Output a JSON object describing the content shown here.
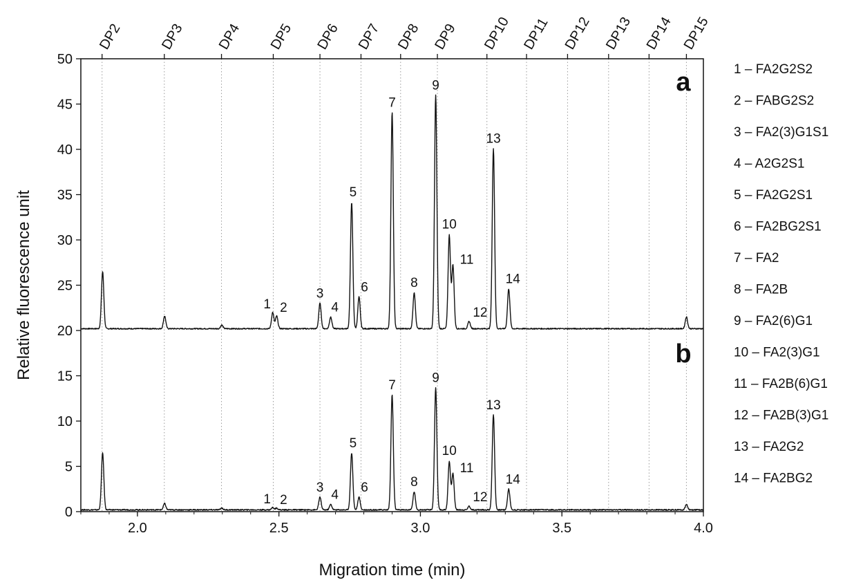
{
  "chart_data": {
    "type": "line",
    "xlabel": "Migration time (min)",
    "ylabel": "Relative fluorescence unit",
    "xlim": [
      1.8,
      4.0
    ],
    "ylim": [
      0,
      50
    ],
    "x_ticks": [
      "2.0",
      "2.5",
      "3.0",
      "3.5",
      "4.0"
    ],
    "y_ticks": [
      "0",
      "5",
      "10",
      "15",
      "20",
      "25",
      "30",
      "35",
      "40",
      "45",
      "50"
    ],
    "grid": "vertical dotted lines at DP ladder positions",
    "panel_labels": [
      "a",
      "b"
    ],
    "dp_ladder": [
      {
        "label": "DP2",
        "x": 1.875
      },
      {
        "label": "DP3",
        "x": 2.095
      },
      {
        "label": "DP4",
        "x": 2.297
      },
      {
        "label": "DP5",
        "x": 2.48
      },
      {
        "label": "DP6",
        "x": 2.645
      },
      {
        "label": "DP7",
        "x": 2.79
      },
      {
        "label": "DP8",
        "x": 2.93
      },
      {
        "label": "DP9",
        "x": 3.06
      },
      {
        "label": "DP10",
        "x": 3.235
      },
      {
        "label": "DP11",
        "x": 3.375
      },
      {
        "label": "DP12",
        "x": 3.52
      },
      {
        "label": "DP13",
        "x": 3.665
      },
      {
        "label": "DP14",
        "x": 3.808
      },
      {
        "label": "DP15",
        "x": 3.94
      }
    ],
    "series": [
      {
        "baseline": 20.2,
        "peaks": [
          {
            "label": "",
            "x": 1.877,
            "y": 26.5
          },
          {
            "label": "",
            "x": 2.096,
            "y": 21.6
          },
          {
            "label": "",
            "x": 2.298,
            "y": 20.6
          },
          {
            "label": "1",
            "x": 2.478,
            "y": 22.0
          },
          {
            "label": "2",
            "x": 2.492,
            "y": 21.6
          },
          {
            "label": "3",
            "x": 2.645,
            "y": 23.0
          },
          {
            "label": "4",
            "x": 2.683,
            "y": 21.5
          },
          {
            "label": "5",
            "x": 2.757,
            "y": 34.2
          },
          {
            "label": "6",
            "x": 2.783,
            "y": 23.7
          },
          {
            "label": "7",
            "x": 2.9,
            "y": 44.1
          },
          {
            "label": "8",
            "x": 2.978,
            "y": 24.2
          },
          {
            "label": "9",
            "x": 3.054,
            "y": 46.0
          },
          {
            "label": "10",
            "x": 3.102,
            "y": 30.5
          },
          {
            "label": "11",
            "x": 3.115,
            "y": 27.2
          },
          {
            "label": "12",
            "x": 3.172,
            "y": 21.0
          },
          {
            "label": "13",
            "x": 3.258,
            "y": 40.1
          },
          {
            "label": "14",
            "x": 3.312,
            "y": 24.6
          },
          {
            "label": "",
            "x": 3.94,
            "y": 21.5
          }
        ]
      },
      {
        "baseline": 0.2,
        "peaks": [
          {
            "label": "",
            "x": 1.877,
            "y": 6.5
          },
          {
            "label": "",
            "x": 2.096,
            "y": 0.9
          },
          {
            "label": "",
            "x": 2.298,
            "y": 0.4
          },
          {
            "label": "1",
            "x": 2.478,
            "y": 0.45
          },
          {
            "label": "2",
            "x": 2.492,
            "y": 0.4
          },
          {
            "label": "3",
            "x": 2.645,
            "y": 1.6
          },
          {
            "label": "4",
            "x": 2.683,
            "y": 0.8
          },
          {
            "label": "5",
            "x": 2.757,
            "y": 6.5
          },
          {
            "label": "6",
            "x": 2.783,
            "y": 1.6
          },
          {
            "label": "7",
            "x": 2.9,
            "y": 12.9
          },
          {
            "label": "8",
            "x": 2.978,
            "y": 2.2
          },
          {
            "label": "9",
            "x": 3.054,
            "y": 13.7
          },
          {
            "label": "10",
            "x": 3.102,
            "y": 5.5
          },
          {
            "label": "11",
            "x": 3.115,
            "y": 4.2
          },
          {
            "label": "12",
            "x": 3.172,
            "y": 0.6
          },
          {
            "label": "13",
            "x": 3.258,
            "y": 10.7
          },
          {
            "label": "14",
            "x": 3.312,
            "y": 2.5
          },
          {
            "label": "",
            "x": 3.94,
            "y": 0.8
          }
        ]
      }
    ],
    "legend": [
      "1 – FA2G2S2",
      "2 – FABG2S2",
      "3 – FA2(3)G1S1",
      "4 – A2G2S1",
      "5 – FA2G2S1",
      "6 – FA2BG2S1",
      "7 – FA2",
      "8 – FA2B",
      "9 – FA2(6)G1",
      "10 – FA2(3)G1",
      "11 – FA2B(6)G1",
      "12 – FA2B(3)G1",
      "13 – FA2G2",
      "14 – FA2BG2"
    ]
  },
  "colors": {
    "trace": "#111111",
    "axis": "#111111",
    "grid": "#9a9a9a",
    "background": "#ffffff"
  }
}
